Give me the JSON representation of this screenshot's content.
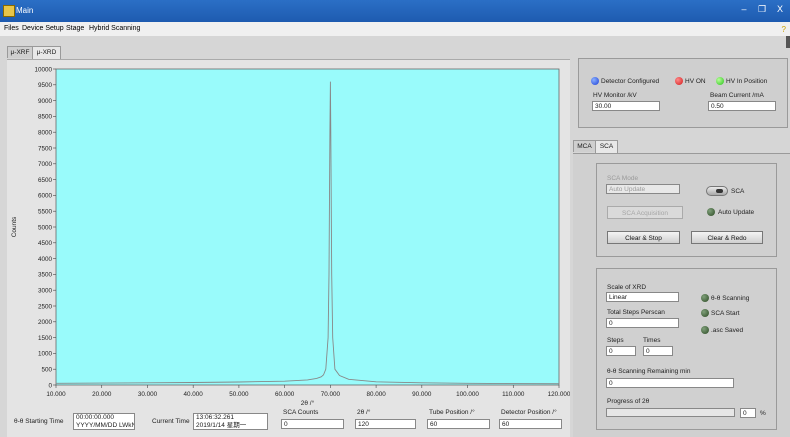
{
  "window": {
    "title": "Main",
    "minimize": "–",
    "restore": "❐",
    "close": "X"
  },
  "menu": [
    "Files",
    "Device Setup",
    "Stage",
    "Hybrid Scanning"
  ],
  "tabs_left": [
    "μ-XRF",
    "μ-XRD"
  ],
  "status": {
    "detector_configured": "Detector Configured",
    "hv_on": "HV ON",
    "hv_in_position": "HV In Position",
    "hv_monitor_label": "HV Monitor /kV",
    "hv_monitor_value": "30.00",
    "beam_current_label": "Beam Current /mA",
    "beam_current_value": "0.50"
  },
  "tabs_right": [
    "MCA",
    "SCA"
  ],
  "sca": {
    "mode_label": "SCA Mode",
    "mode_value": "Auto Update",
    "sca_toggle_label": "SCA",
    "acquisition_button": "SCA Acquisition",
    "auto_update_label": "Auto Update",
    "clear_stop_button": "Clear & Stop",
    "clear_redo_button": "Clear & Redo"
  },
  "xrd": {
    "scale_label": "Scale of XRD",
    "scale_value": "Linear",
    "theta_scanning": "θ-θ Scanning",
    "total_steps_label": "Total Steps Perscan",
    "total_steps_value": "0",
    "sca_start": "SCA Start",
    "asc_saved": ".asc Saved",
    "steps_label": "Steps",
    "steps_value": "0",
    "times_label": "Times",
    "times_value": "0",
    "remaining_label": "θ-θ Scanning Remaining min",
    "remaining_value": "0",
    "progress_label": "Progress of 2θ",
    "progress_value": "0",
    "progress_unit": "%",
    "progress_fraction": 0
  },
  "bottom": {
    "start_time_label": "θ-θ Starting Time",
    "start_time_line1": "00:00:00.000",
    "start_time_line2": "YYYY/MM/DD LWkNm",
    "current_time_label": "Current Time",
    "current_time_line1": "13:06:32.261",
    "current_time_line2": "2019/1/14 星期一",
    "sca_counts_label": "SCA Counts",
    "sca_counts_value": "0",
    "two_theta_label": "2θ /°",
    "two_theta_value": "120",
    "tube_pos_label": "Tube Position /°",
    "tube_pos_value": "60",
    "det_pos_label": "Detector Position /°",
    "det_pos_value": "60"
  },
  "colors": {
    "plot_bg": "#99fbfb",
    "trace": "#888888",
    "led_blue": "#1c3fd6",
    "led_red": "#d21a1a",
    "led_green": "#29c21a",
    "led_dark_green": "#2c4a24"
  },
  "chart_data": {
    "type": "line",
    "xlabel": "2θ /°",
    "ylabel": "Counts",
    "xlim": [
      10,
      120
    ],
    "ylim": [
      0,
      10000
    ],
    "x_ticks": [
      "10.000",
      "20.000",
      "30.000",
      "40.000",
      "50.000",
      "60.000",
      "70.000",
      "80.000",
      "90.000",
      "100.000",
      "110.000",
      "120.000"
    ],
    "y_ticks": [
      "0",
      "500",
      "1000",
      "1500",
      "2000",
      "2500",
      "3000",
      "3500",
      "4000",
      "4500",
      "5000",
      "5500",
      "6000",
      "6500",
      "7000",
      "7500",
      "8000",
      "8500",
      "9000",
      "9500",
      "10000"
    ],
    "grid": false,
    "series": [
      {
        "x": [
          10,
          20,
          30,
          40,
          50,
          60,
          65,
          67,
          68,
          68.5,
          69,
          69.5,
          69.7,
          69.9,
          70.0,
          70.1,
          70.3,
          70.5,
          71,
          72,
          74,
          80,
          90,
          100,
          110,
          120
        ],
        "values": [
          55,
          60,
          70,
          80,
          95,
          120,
          160,
          210,
          260,
          320,
          500,
          1500,
          3500,
          8000,
          9600,
          8000,
          3500,
          1500,
          500,
          300,
          180,
          100,
          70,
          55,
          45,
          40
        ]
      }
    ]
  }
}
